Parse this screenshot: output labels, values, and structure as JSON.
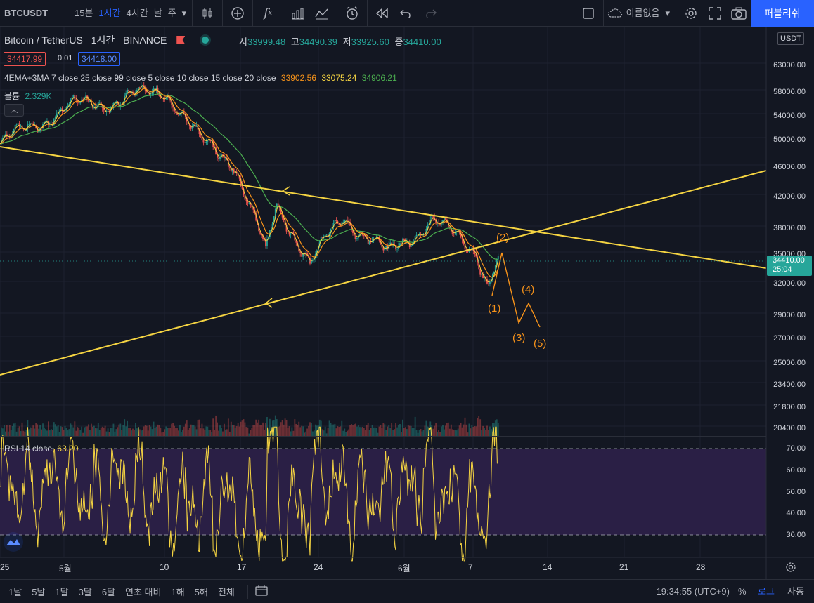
{
  "toolbar": {
    "symbol": "BTCUSDT",
    "intervals": [
      "15분",
      "1시간",
      "4시간",
      "날",
      "주"
    ],
    "active_interval": "1시간",
    "layout_name": "이름없음",
    "publish_label": "퍼블리쉬"
  },
  "legend": {
    "title": "Bitcoin / TetherUS",
    "interval": "1시간",
    "exchange": "BINANCE",
    "ohlc": {
      "open_label": "시",
      "open": "33999.48",
      "high_label": "고",
      "high": "34490.39",
      "low_label": "저",
      "low": "33925.60",
      "close_label": "종",
      "close": "34410.00"
    },
    "bid": "34417.99",
    "spread": "0.01",
    "ask": "34418.00",
    "indicator": "4EMA+3MA 7 close 25 close 99 close 5 close 10 close 15 close 20 close",
    "indicator_values": [
      "33902.56",
      "33075.24",
      "34906.21"
    ],
    "volume_label": "볼륨",
    "volume_value": "2.329K",
    "rsi_label": "RSI 14 close",
    "rsi_value": "63.20"
  },
  "colors": {
    "up": "#26a69a",
    "down": "#ef5350",
    "trendline": "#f5d442",
    "wave": "#f7931a",
    "rsi": "#f5d442",
    "rsi_band": "#2a1f45",
    "ma_orange": "#f7931a",
    "ma_green": "#4caf50",
    "grid": "#1e2230",
    "accent": "#2962ff"
  },
  "price_axis": {
    "currency": "USDT",
    "top_clipped": "6",
    "labels": [
      "63000.00",
      "58000.00",
      "54000.00",
      "50000.00",
      "46000.00",
      "42000.00",
      "38000.00",
      "35000.00",
      "32000.00",
      "29000.00",
      "27000.00",
      "25000.00",
      "23400.00",
      "21800.00",
      "20400.00"
    ],
    "last_price": "34410.00",
    "countdown": "25:04"
  },
  "rsi_axis": {
    "labels": [
      "70.00",
      "60.00",
      "50.00",
      "40.00",
      "30.00"
    ]
  },
  "time_axis": {
    "labels": [
      "25",
      "5월",
      "10",
      "17",
      "24",
      "6월",
      "7",
      "14",
      "21",
      "28"
    ]
  },
  "wave_labels": [
    "(1)",
    "(2)",
    "(3)",
    "(4)",
    "(5)"
  ],
  "bottom": {
    "ranges": [
      "1날",
      "5날",
      "1달",
      "3달",
      "6달",
      "연초 대비",
      "1해",
      "5해",
      "전체"
    ],
    "clock": "19:34:55 (UTC+9)",
    "percent": "%",
    "log": "로그",
    "auto": "자동"
  },
  "chart_data": {
    "type": "candlestick",
    "symbol": "BTCUSDT",
    "interval": "1h",
    "price_path_approx": [
      {
        "date": "Apr 25",
        "price": 49500
      },
      {
        "date": "May 1",
        "price": 55500
      },
      {
        "date": "May 5",
        "price": 56500
      },
      {
        "date": "May 10",
        "price": 58500
      },
      {
        "date": "May 13",
        "price": 50000
      },
      {
        "date": "May 16",
        "price": 47000
      },
      {
        "date": "May 19",
        "price": 35000
      },
      {
        "date": "May 20",
        "price": 41000
      },
      {
        "date": "May 23",
        "price": 34000
      },
      {
        "date": "May 26",
        "price": 39500
      },
      {
        "date": "May 30",
        "price": 35000
      },
      {
        "date": "Jun 3",
        "price": 39000
      },
      {
        "date": "Jun 7",
        "price": 35500
      },
      {
        "date": "Jun 8",
        "price": 32000
      },
      {
        "date": "Jun 9",
        "price": 34410
      }
    ],
    "last": 34410.0,
    "rsi_last": 63.2
  }
}
